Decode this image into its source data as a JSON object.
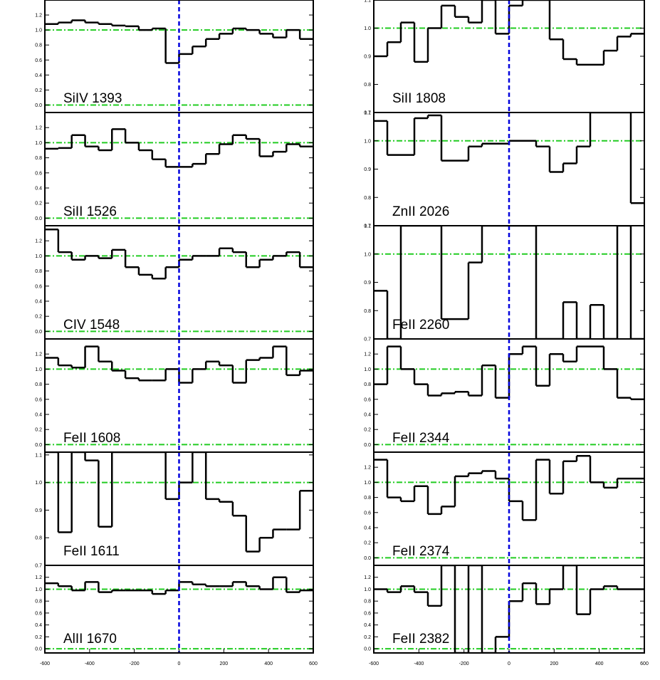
{
  "chart_data": [
    {
      "type": "line",
      "title": "SiIV 1393",
      "color": "#000000",
      "x": [
        -570,
        -510,
        -450,
        -390,
        -330,
        -270,
        -210,
        -150,
        -90,
        -30,
        30,
        90,
        150,
        210,
        270,
        330,
        390,
        450,
        510,
        570
      ],
      "values": [
        1.08,
        1.1,
        1.13,
        1.1,
        1.08,
        1.06,
        1.05,
        1.0,
        1.02,
        0.56,
        0.68,
        0.78,
        0.88,
        0.95,
        1.02,
        1.0,
        0.95,
        0.9,
        1.0,
        0.88
      ],
      "xlim": [
        -600,
        600
      ],
      "ylim": [
        -0.1,
        1.4
      ],
      "yticks": [
        {
          "value": 0,
          "label": "0.0"
        },
        {
          "value": 0.2,
          "label": "0.2"
        },
        {
          "value": 0.4,
          "label": "0.4"
        },
        {
          "value": 0.6,
          "label": "0.6"
        },
        {
          "value": 0.8,
          "label": "0.8"
        },
        {
          "value": 1,
          "label": "1.0"
        },
        {
          "value": 1.2,
          "label": "1.2"
        }
      ],
      "hlines": [
        0,
        1
      ],
      "hline_color": "#22cc22",
      "vline": 0,
      "vline_color": "#0000dd"
    },
    {
      "type": "line",
      "title": "SiII 1526",
      "color": "#000000",
      "x": [
        -570,
        -510,
        -450,
        -390,
        -330,
        -270,
        -210,
        -150,
        -90,
        -30,
        30,
        90,
        150,
        210,
        270,
        330,
        390,
        450,
        510,
        570
      ],
      "values": [
        0.92,
        0.93,
        1.1,
        0.95,
        0.9,
        1.18,
        1.0,
        0.9,
        0.78,
        0.68,
        0.68,
        0.72,
        0.85,
        0.98,
        1.1,
        1.05,
        0.82,
        0.88,
        0.98,
        0.95
      ],
      "xlim": [
        -600,
        600
      ],
      "ylim": [
        -0.1,
        1.4
      ],
      "yticks": [
        {
          "value": 0,
          "label": "0.0"
        },
        {
          "value": 0.2,
          "label": "0.2"
        },
        {
          "value": 0.4,
          "label": "0.4"
        },
        {
          "value": 0.6,
          "label": "0.6"
        },
        {
          "value": 0.8,
          "label": "0.8"
        },
        {
          "value": 1,
          "label": "1.0"
        },
        {
          "value": 1.2,
          "label": "1.2"
        }
      ],
      "hlines": [
        0,
        1
      ],
      "hline_color": "#22cc22",
      "vline": 0,
      "vline_color": "#0000dd"
    },
    {
      "type": "line",
      "title": "CIV 1548",
      "color": "#000000",
      "x": [
        -570,
        -510,
        -450,
        -390,
        -330,
        -270,
        -210,
        -150,
        -90,
        -30,
        30,
        90,
        150,
        210,
        270,
        330,
        390,
        450,
        510,
        570
      ],
      "values": [
        1.35,
        1.05,
        0.95,
        1.0,
        0.97,
        1.08,
        0.85,
        0.75,
        0.7,
        0.85,
        0.95,
        1.0,
        1.0,
        1.1,
        1.05,
        0.85,
        0.95,
        1.0,
        1.05,
        0.85
      ],
      "xlim": [
        -600,
        600
      ],
      "ylim": [
        -0.1,
        1.4
      ],
      "yticks": [
        {
          "value": 0,
          "label": "0.0"
        },
        {
          "value": 0.2,
          "label": "0.2"
        },
        {
          "value": 0.4,
          "label": "0.4"
        },
        {
          "value": 0.6,
          "label": "0.6"
        },
        {
          "value": 0.8,
          "label": "0.8"
        },
        {
          "value": 1,
          "label": "1.0"
        },
        {
          "value": 1.2,
          "label": "1.2"
        }
      ],
      "hlines": [
        0,
        1
      ],
      "hline_color": "#22cc22",
      "vline": 0,
      "vline_color": "#0000dd"
    },
    {
      "type": "line",
      "title": "FeII 1608",
      "color": "#000000",
      "x": [
        -570,
        -510,
        -450,
        -390,
        -330,
        -270,
        -210,
        -150,
        -90,
        -30,
        30,
        90,
        150,
        210,
        270,
        330,
        390,
        450,
        510,
        570
      ],
      "values": [
        1.15,
        1.05,
        1.02,
        1.3,
        1.1,
        0.98,
        0.88,
        0.85,
        0.85,
        1.0,
        0.82,
        1.0,
        1.1,
        1.05,
        0.82,
        1.12,
        1.15,
        1.3,
        0.92,
        0.98
      ],
      "xlim": [
        -600,
        600
      ],
      "ylim": [
        -0.1,
        1.4
      ],
      "yticks": [
        {
          "value": 0,
          "label": "0.0"
        },
        {
          "value": 0.2,
          "label": "0.2"
        },
        {
          "value": 0.4,
          "label": "0.4"
        },
        {
          "value": 0.6,
          "label": "0.6"
        },
        {
          "value": 0.8,
          "label": "0.8"
        },
        {
          "value": 1,
          "label": "1.0"
        },
        {
          "value": 1.2,
          "label": "1.2"
        }
      ],
      "hlines": [
        0,
        1
      ],
      "hline_color": "#22cc22",
      "vline": 0,
      "vline_color": "#0000dd"
    },
    {
      "type": "line",
      "title": "FeII 1611",
      "color": "#000000",
      "x": [
        -570,
        -510,
        -450,
        -390,
        -330,
        -270,
        -210,
        -150,
        -90,
        -30,
        30,
        90,
        150,
        210,
        270,
        330,
        390,
        450,
        510,
        570
      ],
      "values": [
        1.11,
        0.82,
        1.11,
        1.08,
        0.84,
        1.11,
        1.11,
        1.11,
        1.11,
        0.94,
        1.0,
        1.11,
        0.94,
        0.93,
        0.88,
        0.75,
        0.8,
        0.83,
        0.83,
        0.97
      ],
      "xlim": [
        -600,
        600
      ],
      "ylim": [
        0.7,
        1.11
      ],
      "yticks": [
        {
          "value": 0.7,
          "label": "0.7"
        },
        {
          "value": 0.8,
          "label": "0.8"
        },
        {
          "value": 0.9,
          "label": "0.9"
        },
        {
          "value": 1,
          "label": "1.0"
        },
        {
          "value": 1.1,
          "label": "1.1"
        }
      ],
      "hlines": [
        0,
        1
      ],
      "hline_color": "#22cc22",
      "vline": 0,
      "vline_color": "#0000dd"
    },
    {
      "type": "line",
      "title": "AlII 1670",
      "color": "#000000",
      "x": [
        -570,
        -510,
        -450,
        -390,
        -330,
        -270,
        -210,
        -150,
        -90,
        -30,
        30,
        90,
        150,
        210,
        270,
        330,
        390,
        450,
        510,
        570
      ],
      "values": [
        1.1,
        1.05,
        0.98,
        1.12,
        0.95,
        0.98,
        0.98,
        0.98,
        0.92,
        0.98,
        1.12,
        1.08,
        1.05,
        1.05,
        1.12,
        1.05,
        1.0,
        1.2,
        0.95,
        0.98
      ],
      "xlim": [
        -600,
        600
      ],
      "ylim": [
        -0.07,
        1.4
      ],
      "yticks": [
        {
          "value": 0,
          "label": "0.0"
        },
        {
          "value": 0.2,
          "label": "0.2"
        },
        {
          "value": 0.4,
          "label": "0.4"
        },
        {
          "value": 0.6,
          "label": "0.6"
        },
        {
          "value": 0.8,
          "label": "0.8"
        },
        {
          "value": 1,
          "label": "1.0"
        },
        {
          "value": 1.2,
          "label": "1.2"
        }
      ],
      "xticks": [
        -600,
        -400,
        -200,
        0,
        200,
        400,
        600
      ],
      "hlines": [
        0,
        1
      ],
      "hline_color": "#22cc22",
      "vline": 0,
      "vline_color": "#0000dd"
    },
    {
      "type": "line",
      "title": "SiII 1808",
      "color": "#000000",
      "x": [
        -570,
        -510,
        -450,
        -390,
        -330,
        -270,
        -210,
        -150,
        -90,
        -30,
        30,
        90,
        150,
        210,
        270,
        330,
        390,
        450,
        510,
        570
      ],
      "values": [
        0.9,
        0.95,
        1.02,
        0.88,
        1.0,
        1.08,
        1.04,
        1.02,
        1.1,
        0.98,
        1.08,
        1.1,
        1.1,
        0.96,
        0.89,
        0.87,
        0.87,
        0.92,
        0.97,
        0.98
      ],
      "xlim": [
        -600,
        600
      ],
      "ylim": [
        0.7,
        1.1
      ],
      "yticks": [
        {
          "value": 0.7,
          "label": "0.7"
        },
        {
          "value": 0.8,
          "label": "0.8"
        },
        {
          "value": 0.9,
          "label": "0.9"
        },
        {
          "value": 1,
          "label": "1.0"
        },
        {
          "value": 1.1,
          "label": "1.1"
        }
      ],
      "hlines": [
        0,
        1
      ],
      "hline_color": "#22cc22",
      "vline": 0,
      "vline_color": "#0000dd"
    },
    {
      "type": "line",
      "title": "ZnII 2026",
      "color": "#000000",
      "x": [
        -570,
        -510,
        -450,
        -390,
        -330,
        -270,
        -210,
        -150,
        -90,
        -30,
        30,
        90,
        150,
        210,
        270,
        330,
        390,
        450,
        510,
        570
      ],
      "values": [
        1.07,
        0.95,
        0.95,
        1.08,
        1.09,
        0.93,
        0.93,
        0.98,
        0.99,
        0.99,
        1.0,
        1.0,
        0.98,
        0.89,
        0.92,
        0.98,
        1.1,
        1.1,
        1.1,
        0.78
      ],
      "xlim": [
        -600,
        600
      ],
      "ylim": [
        0.7,
        1.1
      ],
      "yticks": [
        {
          "value": 0.7,
          "label": "0.7"
        },
        {
          "value": 0.8,
          "label": "0.8"
        },
        {
          "value": 0.9,
          "label": "0.9"
        },
        {
          "value": 1,
          "label": "1.0"
        },
        {
          "value": 1.1,
          "label": "1.1"
        }
      ],
      "hlines": [
        0,
        1
      ],
      "hline_color": "#22cc22",
      "vline": 0,
      "vline_color": "#0000dd"
    },
    {
      "type": "line",
      "title": "FeII 2260",
      "color": "#000000",
      "x": [
        -570,
        -510,
        -450,
        -390,
        -330,
        -270,
        -210,
        -150,
        -90,
        -30,
        30,
        90,
        150,
        210,
        270,
        330,
        390,
        450,
        510,
        570
      ],
      "values": [
        0.87,
        0.7,
        1.1,
        1.1,
        1.1,
        0.77,
        0.77,
        0.97,
        1.1,
        1.1,
        1.1,
        1.1,
        0.7,
        0.7,
        0.83,
        0.7,
        0.82,
        0.7,
        1.1,
        0.7
      ],
      "xlim": [
        -600,
        600
      ],
      "ylim": [
        0.7,
        1.1
      ],
      "yticks": [
        {
          "value": 0.7,
          "label": "0.7"
        },
        {
          "value": 0.8,
          "label": "0.8"
        },
        {
          "value": 0.9,
          "label": "0.9"
        },
        {
          "value": 1,
          "label": "1.0"
        },
        {
          "value": 1.1,
          "label": "1.1"
        }
      ],
      "hlines": [
        0,
        1
      ],
      "hline_color": "#22cc22",
      "vline": 0,
      "vline_color": "#0000dd"
    },
    {
      "type": "line",
      "title": "FeII 2344",
      "color": "#000000",
      "x": [
        -570,
        -510,
        -450,
        -390,
        -330,
        -270,
        -210,
        -150,
        -90,
        -30,
        30,
        90,
        150,
        210,
        270,
        330,
        390,
        450,
        510,
        570
      ],
      "values": [
        0.8,
        1.3,
        1.0,
        0.8,
        0.65,
        0.68,
        0.7,
        0.65,
        1.05,
        0.62,
        1.2,
        1.3,
        0.78,
        1.2,
        1.1,
        1.3,
        1.3,
        1.0,
        0.62,
        0.6
      ],
      "xlim": [
        -600,
        600
      ],
      "ylim": [
        -0.1,
        1.4
      ],
      "yticks": [
        {
          "value": 0,
          "label": "0.0"
        },
        {
          "value": 0.2,
          "label": "0.2"
        },
        {
          "value": 0.4,
          "label": "0.4"
        },
        {
          "value": 0.6,
          "label": "0.6"
        },
        {
          "value": 0.8,
          "label": "0.8"
        },
        {
          "value": 1,
          "label": "1.0"
        },
        {
          "value": 1.2,
          "label": "1.2"
        }
      ],
      "hlines": [
        0,
        1
      ],
      "hline_color": "#22cc22",
      "vline": 0,
      "vline_color": "#0000dd"
    },
    {
      "type": "line",
      "title": "FeII 2374",
      "color": "#000000",
      "x": [
        -570,
        -510,
        -450,
        -390,
        -330,
        -270,
        -210,
        -150,
        -90,
        -30,
        30,
        90,
        150,
        210,
        270,
        330,
        390,
        450,
        510,
        570
      ],
      "values": [
        1.3,
        0.8,
        0.75,
        0.95,
        0.58,
        0.68,
        1.08,
        1.12,
        1.15,
        1.05,
        0.75,
        0.5,
        1.3,
        0.85,
        1.28,
        1.35,
        1.0,
        0.93,
        1.05,
        1.05
      ],
      "xlim": [
        -600,
        600
      ],
      "ylim": [
        -0.1,
        1.4
      ],
      "yticks": [
        {
          "value": 0,
          "label": "0.0"
        },
        {
          "value": 0.2,
          "label": "0.2"
        },
        {
          "value": 0.4,
          "label": "0.4"
        },
        {
          "value": 0.6,
          "label": "0.6"
        },
        {
          "value": 0.8,
          "label": "0.8"
        },
        {
          "value": 1,
          "label": "1.0"
        },
        {
          "value": 1.2,
          "label": "1.2"
        }
      ],
      "hlines": [
        0,
        1
      ],
      "hline_color": "#22cc22",
      "vline": 0,
      "vline_color": "#0000dd"
    },
    {
      "type": "line",
      "title": "FeII 2382",
      "color": "#000000",
      "x": [
        -570,
        -510,
        -450,
        -390,
        -330,
        -270,
        -210,
        -150,
        -90,
        -30,
        30,
        90,
        150,
        210,
        270,
        330,
        390,
        450,
        510,
        570
      ],
      "values": [
        1.0,
        0.95,
        1.05,
        0.95,
        0.72,
        1.4,
        -0.07,
        1.4,
        -0.07,
        0.2,
        0.8,
        1.1,
        0.75,
        1.0,
        1.4,
        0.58,
        1.0,
        1.05,
        1.0,
        1.0
      ],
      "xlim": [
        -600,
        600
      ],
      "ylim": [
        -0.07,
        1.4
      ],
      "yticks": [
        {
          "value": 0,
          "label": "0.0"
        },
        {
          "value": 0.2,
          "label": "0.2"
        },
        {
          "value": 0.4,
          "label": "0.4"
        },
        {
          "value": 0.6,
          "label": "0.6"
        },
        {
          "value": 0.8,
          "label": "0.8"
        },
        {
          "value": 1,
          "label": "1.0"
        },
        {
          "value": 1.2,
          "label": "1.2"
        }
      ],
      "xticks": [
        -600,
        -400,
        -200,
        0,
        200,
        400,
        600
      ],
      "hlines": [
        0,
        1
      ],
      "hline_color": "#22cc22",
      "vline": 0,
      "vline_color": "#0000dd"
    }
  ]
}
